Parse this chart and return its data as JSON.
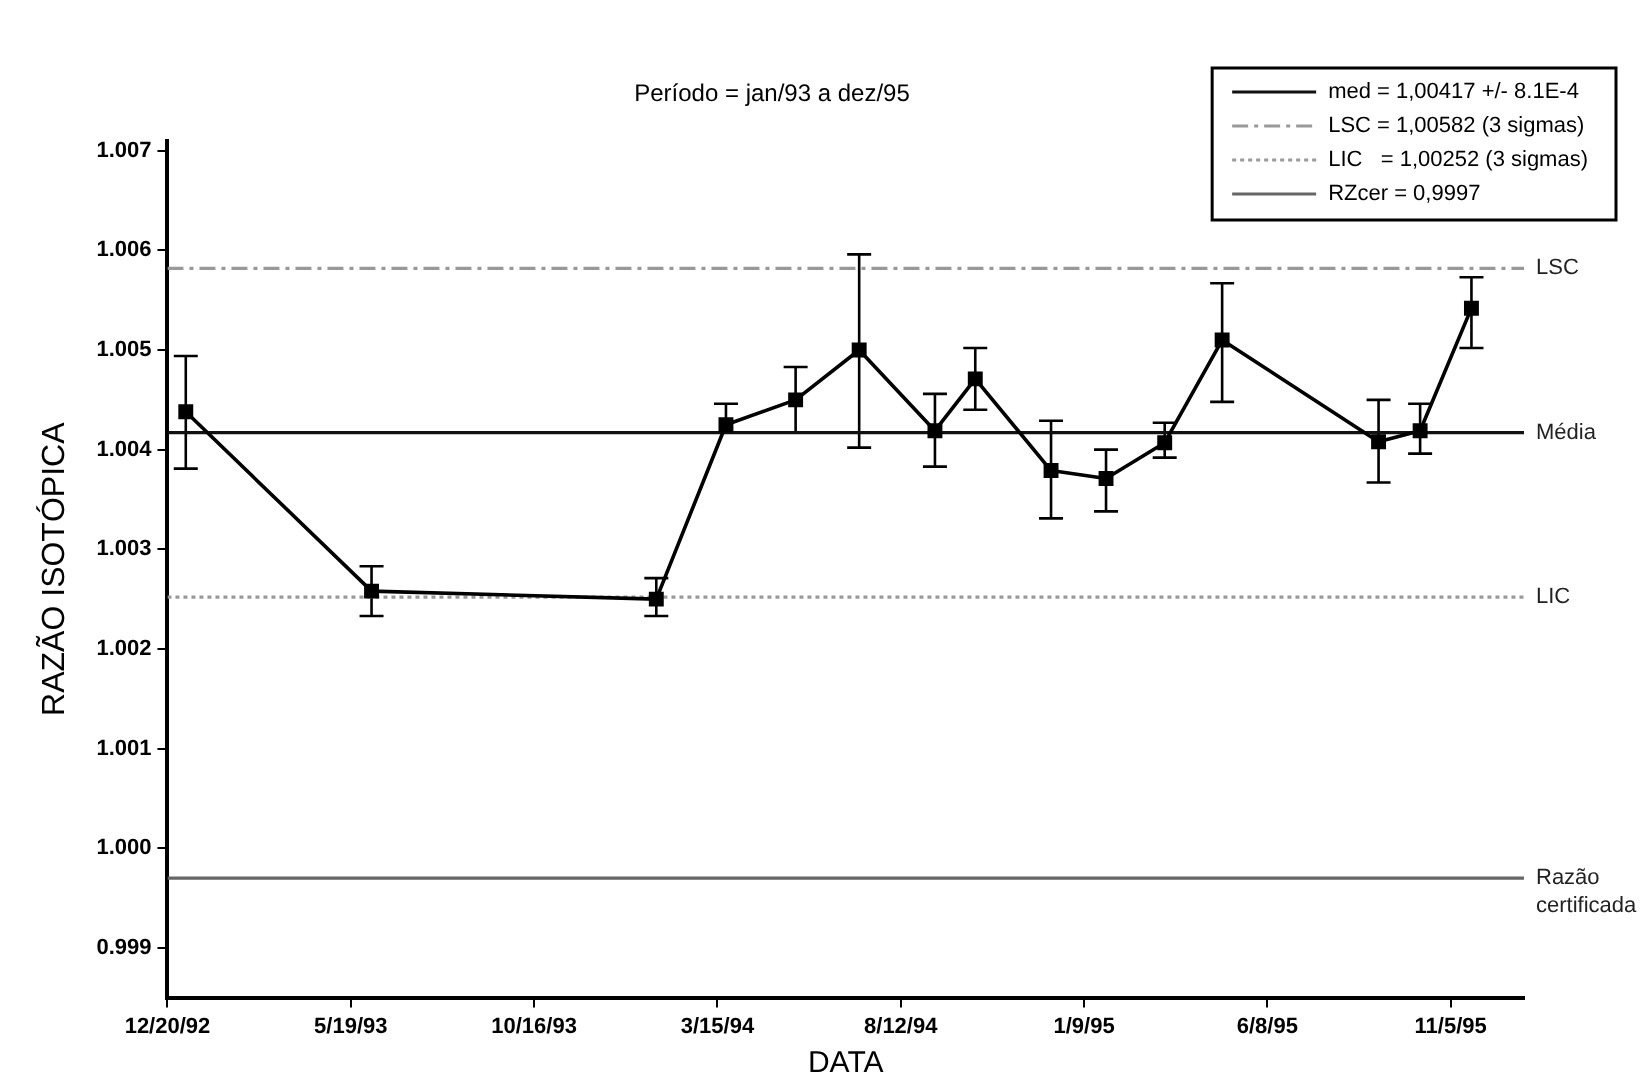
{
  "chart_data": {
    "type": "line",
    "title": "Período = jan/93 a dez/95",
    "xlabel": "DATA",
    "ylabel": "RAZÃO ISOTÓPICA",
    "xlim": [
      "1992-12-20",
      "1996-01-04"
    ],
    "xticks": [
      {
        "value": "1992-12-20",
        "label": "12/20/92"
      },
      {
        "value": "1993-05-19",
        "label": "5/19/93"
      },
      {
        "value": "1993-10-16",
        "label": "10/16/93"
      },
      {
        "value": "1994-03-15",
        "label": "3/15/94"
      },
      {
        "value": "1994-08-12",
        "label": "8/12/94"
      },
      {
        "value": "1995-01-09",
        "label": "1/9/95"
      },
      {
        "value": "1995-06-08",
        "label": "6/8/95"
      },
      {
        "value": "1995-11-05",
        "label": "11/5/95"
      }
    ],
    "ylim": [
      0.9985,
      1.0071
    ],
    "yticks": [
      {
        "value": 0.999,
        "label": "0.999"
      },
      {
        "value": 1.0,
        "label": "1.000"
      },
      {
        "value": 1.001,
        "label": "1.001"
      },
      {
        "value": 1.002,
        "label": "1.002"
      },
      {
        "value": 1.003,
        "label": "1.003"
      },
      {
        "value": 1.004,
        "label": "1.004"
      },
      {
        "value": 1.005,
        "label": "1.005"
      },
      {
        "value": 1.006,
        "label": "1.006"
      },
      {
        "value": 1.007,
        "label": "1.007"
      }
    ],
    "legend": "top right",
    "grid": false,
    "series": [
      {
        "color": "#000000",
        "marker": "square",
        "line_style": "solid",
        "x": [
          "1993-01-04",
          "1993-06-05",
          "1994-01-24",
          "1994-03-22",
          "1994-05-18",
          "1994-07-09",
          "1994-09-09",
          "1994-10-12",
          "1994-12-13",
          "1995-01-27",
          "1995-03-16",
          "1995-05-02",
          "1995-09-07",
          "1995-10-11",
          "1995-11-22"
        ],
        "values": [
          1.00438,
          1.00258,
          1.0025,
          1.00425,
          1.0045,
          1.005,
          1.00419,
          1.00471,
          1.00379,
          1.00371,
          1.00407,
          1.0051,
          1.00408,
          1.00419,
          1.00542
        ],
        "errors": [
          [
            1.00381,
            1.00494
          ],
          [
            1.00233,
            1.00283
          ],
          [
            1.00233,
            1.00271
          ],
          [
            1.00417,
            1.00446
          ],
          [
            1.00417,
            1.00483
          ],
          [
            1.00402,
            1.00596
          ],
          [
            1.00383,
            1.00456
          ],
          [
            1.0044,
            1.00502
          ],
          [
            1.00331,
            1.00429
          ],
          [
            1.00338,
            1.004
          ],
          [
            1.00392,
            1.00427
          ],
          [
            1.00448,
            1.00567
          ],
          [
            1.00367,
            1.0045
          ],
          [
            1.00396,
            1.00446
          ],
          [
            1.00502,
            1.00573
          ]
        ]
      },
      {
        "name": "med = 1,00417 +/- 8.1E-4",
        "color": "#111111",
        "marker": "none",
        "line_style": "solid",
        "x": [
          "1992-12-20",
          "1996-01-04"
        ],
        "values": [
          1.00417,
          1.00417
        ]
      },
      {
        "name": "LSC = 1,00582 (3 sigmas)",
        "color": "#999999",
        "marker": "none",
        "line_style": "dashed",
        "x": [
          "1992-12-20",
          "1996-01-04"
        ],
        "values": [
          1.00582,
          1.00582
        ]
      },
      {
        "name": "LIC   = 1,00252 (3 sigmas)",
        "color": "#999999",
        "marker": "none",
        "line_style": "dotted",
        "x": [
          "1992-12-20",
          "1996-01-04"
        ],
        "values": [
          1.00252,
          1.00252
        ]
      },
      {
        "name": "RZcer = 0,9997",
        "color": "#666666",
        "marker": "none",
        "line_style": "solid",
        "x": [
          "1992-12-20",
          "1996-01-04"
        ],
        "values": [
          0.9997,
          0.9997
        ]
      }
    ],
    "annotations": [
      {
        "text": "LSC",
        "x": "1996-01-04",
        "y": 1.00582
      },
      {
        "text": "Média",
        "x": "1996-01-04",
        "y": 1.00417
      },
      {
        "text": "LIC",
        "x": "1996-01-04",
        "y": 1.00252
      },
      {
        "text": "Razão certificada",
        "x": "1996-01-04",
        "y": 0.9997
      }
    ]
  }
}
